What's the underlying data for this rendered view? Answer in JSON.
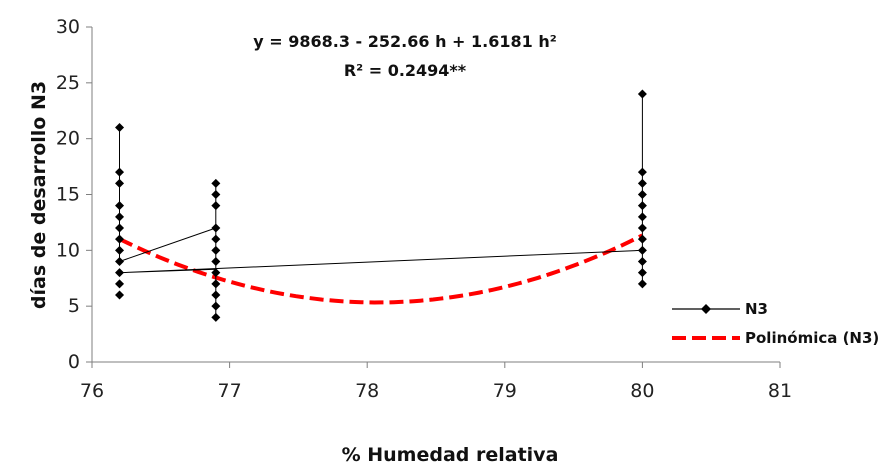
{
  "chart_data": {
    "type": "scatter",
    "xlabel": "% Humedad relativa",
    "ylabel": "días de desarrollo N3",
    "xlim": [
      76,
      81
    ],
    "ylim": [
      0,
      30
    ],
    "x_ticks": [
      76,
      77,
      78,
      79,
      80,
      81
    ],
    "y_ticks": [
      0,
      5,
      10,
      15,
      20,
      25,
      30
    ],
    "grid": false,
    "legend_position": "right",
    "annotation": {
      "equation": "y = 9868.3 - 252.66 h + 1.6181 h²",
      "r2": "R² = 0.2494**"
    },
    "series": [
      {
        "name": "N3",
        "color": "#000000",
        "marker": "diamond",
        "points": [
          {
            "x": 76.2,
            "y": 21
          },
          {
            "x": 76.2,
            "y": 17
          },
          {
            "x": 76.2,
            "y": 16
          },
          {
            "x": 76.2,
            "y": 14
          },
          {
            "x": 76.2,
            "y": 13
          },
          {
            "x": 76.2,
            "y": 12
          },
          {
            "x": 76.2,
            "y": 11
          },
          {
            "x": 76.2,
            "y": 10
          },
          {
            "x": 76.2,
            "y": 9
          },
          {
            "x": 76.2,
            "y": 8
          },
          {
            "x": 76.2,
            "y": 7
          },
          {
            "x": 76.2,
            "y": 6
          },
          {
            "x": 76.9,
            "y": 16
          },
          {
            "x": 76.9,
            "y": 15
          },
          {
            "x": 76.9,
            "y": 14
          },
          {
            "x": 76.9,
            "y": 12
          },
          {
            "x": 76.9,
            "y": 11
          },
          {
            "x": 76.9,
            "y": 10
          },
          {
            "x": 76.9,
            "y": 9
          },
          {
            "x": 76.9,
            "y": 8
          },
          {
            "x": 76.9,
            "y": 7
          },
          {
            "x": 76.9,
            "y": 6
          },
          {
            "x": 76.9,
            "y": 5
          },
          {
            "x": 76.9,
            "y": 4
          },
          {
            "x": 80.0,
            "y": 24
          },
          {
            "x": 80.0,
            "y": 17
          },
          {
            "x": 80.0,
            "y": 16
          },
          {
            "x": 80.0,
            "y": 15
          },
          {
            "x": 80.0,
            "y": 14
          },
          {
            "x": 80.0,
            "y": 13
          },
          {
            "x": 80.0,
            "y": 12
          },
          {
            "x": 80.0,
            "y": 11
          },
          {
            "x": 80.0,
            "y": 10
          },
          {
            "x": 80.0,
            "y": 9
          },
          {
            "x": 80.0,
            "y": 8
          },
          {
            "x": 80.0,
            "y": 7
          }
        ],
        "connecting_line": [
          {
            "x": 76.2,
            "y": 21
          },
          {
            "x": 76.2,
            "y": 9
          },
          {
            "x": 76.9,
            "y": 12
          },
          {
            "x": 76.9,
            "y": 16
          },
          {
            "x": 76.9,
            "y": 4
          },
          {
            "x": 76.9,
            "y": 8.3
          },
          {
            "x": 76.2,
            "y": 8
          },
          {
            "x": 80.0,
            "y": 10
          },
          {
            "x": 80.0,
            "y": 24
          },
          {
            "x": 80.0,
            "y": 7
          }
        ]
      },
      {
        "name": "Polinómica (N3)",
        "color": "#ff0000",
        "style": "dashed",
        "x_range": [
          76.2,
          80.0
        ],
        "coefficients": [
          9868.3,
          -252.66,
          1.6181
        ]
      }
    ]
  }
}
